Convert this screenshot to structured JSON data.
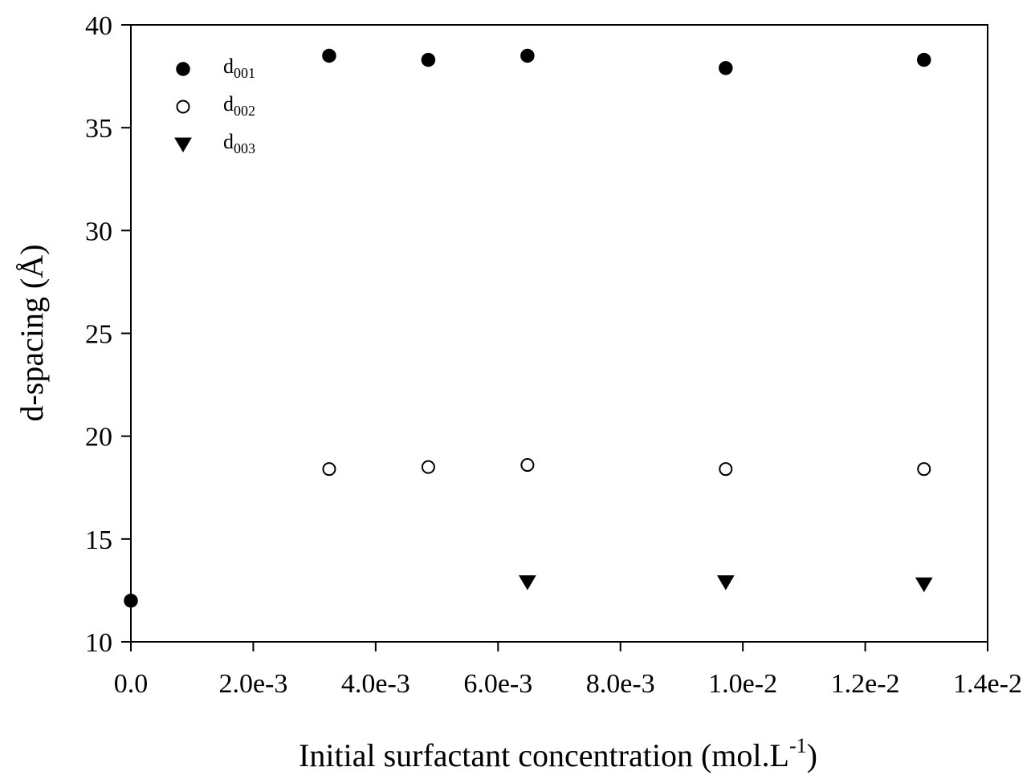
{
  "chart_data": {
    "type": "scatter",
    "title": "",
    "xlabel": "Initial surfactant concentration (mol.L",
    "xlabel_sup": "-1",
    "xlabel_end": ")",
    "ylabel": "d-spacing (Å)",
    "xlim": [
      0,
      0.014
    ],
    "ylim": [
      10,
      40
    ],
    "xticks": [
      0,
      0.002,
      0.004,
      0.006,
      0.008,
      0.01,
      0.012,
      0.014
    ],
    "xtick_labels": [
      "0.0",
      "2.0e-3",
      "4.0e-3",
      "6.0e-3",
      "8.0e-3",
      "1.0e-2",
      "1.2e-2",
      "1.4e-2"
    ],
    "yticks": [
      10,
      15,
      20,
      25,
      30,
      35,
      40
    ],
    "ytick_labels": [
      "10",
      "15",
      "20",
      "25",
      "30",
      "35",
      "40"
    ],
    "grid": false,
    "legend_position": "top-left",
    "series": [
      {
        "name": "d",
        "name_sub": "001",
        "marker": "filled-circle",
        "color": "#000000",
        "x": [
          0,
          0.00324,
          0.00486,
          0.00648,
          0.00972,
          0.01296
        ],
        "y": [
          12.0,
          38.5,
          38.3,
          38.5,
          37.9,
          38.3
        ]
      },
      {
        "name": "d",
        "name_sub": "002",
        "marker": "open-circle",
        "color": "#000000",
        "x": [
          0.00324,
          0.00486,
          0.00648,
          0.00972,
          0.01296
        ],
        "y": [
          18.4,
          18.5,
          18.6,
          18.4,
          18.4
        ]
      },
      {
        "name": "d",
        "name_sub": "003",
        "marker": "filled-triangle-down",
        "color": "#000000",
        "x": [
          0.00648,
          0.00972,
          0.01296
        ],
        "y": [
          12.9,
          12.9,
          12.8
        ]
      }
    ]
  }
}
